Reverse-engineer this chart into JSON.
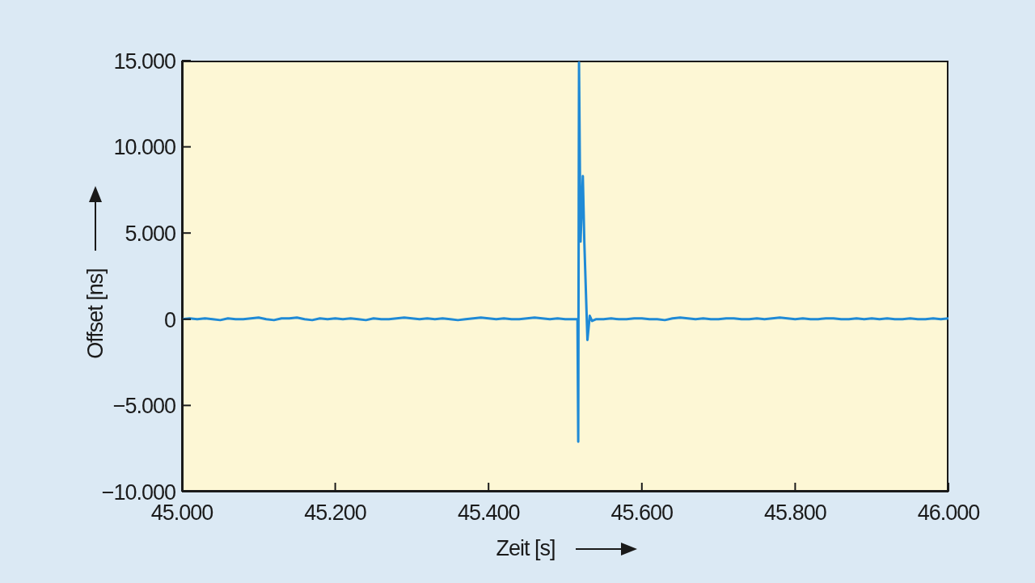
{
  "chart_data": {
    "type": "line",
    "xlabel": "Zeit [s]",
    "ylabel": "Offset [ns]",
    "x": [
      45000,
      45010,
      45020,
      45030,
      45040,
      45050,
      45060,
      45070,
      45080,
      45090,
      45100,
      45110,
      45120,
      45130,
      45140,
      45150,
      45160,
      45170,
      45180,
      45190,
      45200,
      45210,
      45220,
      45230,
      45240,
      45250,
      45260,
      45270,
      45280,
      45290,
      45300,
      45310,
      45320,
      45330,
      45340,
      45350,
      45360,
      45370,
      45380,
      45390,
      45400,
      45410,
      45420,
      45430,
      45440,
      45450,
      45460,
      45470,
      45480,
      45490,
      45500,
      45510,
      45516,
      45517,
      45518,
      45520,
      45523,
      45525,
      45529,
      45532,
      45535,
      45540,
      45550,
      45560,
      45570,
      45580,
      45590,
      45600,
      45610,
      45620,
      45630,
      45640,
      45650,
      45660,
      45670,
      45680,
      45690,
      45700,
      45710,
      45720,
      45730,
      45740,
      45750,
      45760,
      45770,
      45780,
      45790,
      45800,
      45810,
      45820,
      45830,
      45840,
      45850,
      45860,
      45870,
      45880,
      45890,
      45900,
      45910,
      45920,
      45930,
      45940,
      45950,
      45960,
      45970,
      45980,
      45990,
      46000
    ],
    "series": [
      {
        "color": "#1f8ad6",
        "values": [
          0,
          50,
          0,
          50,
          0,
          -50,
          50,
          0,
          0,
          50,
          100,
          0,
          -50,
          50,
          50,
          100,
          0,
          -50,
          50,
          0,
          50,
          0,
          50,
          0,
          -50,
          50,
          0,
          0,
          50,
          100,
          50,
          0,
          50,
          0,
          50,
          0,
          -50,
          0,
          50,
          100,
          50,
          0,
          50,
          0,
          0,
          50,
          100,
          50,
          0,
          50,
          0,
          0,
          0,
          -7100,
          14900,
          4500,
          8300,
          4400,
          -1200,
          200,
          -100,
          0,
          0,
          50,
          0,
          0,
          50,
          50,
          0,
          0,
          -50,
          50,
          100,
          50,
          0,
          50,
          0,
          0,
          50,
          50,
          0,
          0,
          50,
          0,
          50,
          100,
          50,
          0,
          50,
          0,
          0,
          50,
          50,
          0,
          0,
          50,
          0,
          50,
          0,
          50,
          0,
          0,
          50,
          0,
          0,
          50,
          0,
          50
        ]
      }
    ],
    "xlim": [
      45000,
      46000
    ],
    "xticks": [
      {
        "value": 45000,
        "label": "45.000"
      },
      {
        "value": 45200,
        "label": "45.200"
      },
      {
        "value": 45400,
        "label": "45.400"
      },
      {
        "value": 45600,
        "label": "45.600"
      },
      {
        "value": 45800,
        "label": "45.800"
      },
      {
        "value": 46000,
        "label": "46.000"
      }
    ],
    "ylim": [
      -10000,
      15000
    ],
    "yticks": [
      {
        "value": -10000,
        "label": "−10.000"
      },
      {
        "value": -5000,
        "label": "−5.000"
      },
      0,
      {
        "value": 5000,
        "label": "5.000"
      },
      {
        "value": 10000,
        "label": "10.000"
      },
      {
        "value": 15000,
        "label": "15.000"
      }
    ],
    "marker": "none",
    "line_style": "solid"
  }
}
